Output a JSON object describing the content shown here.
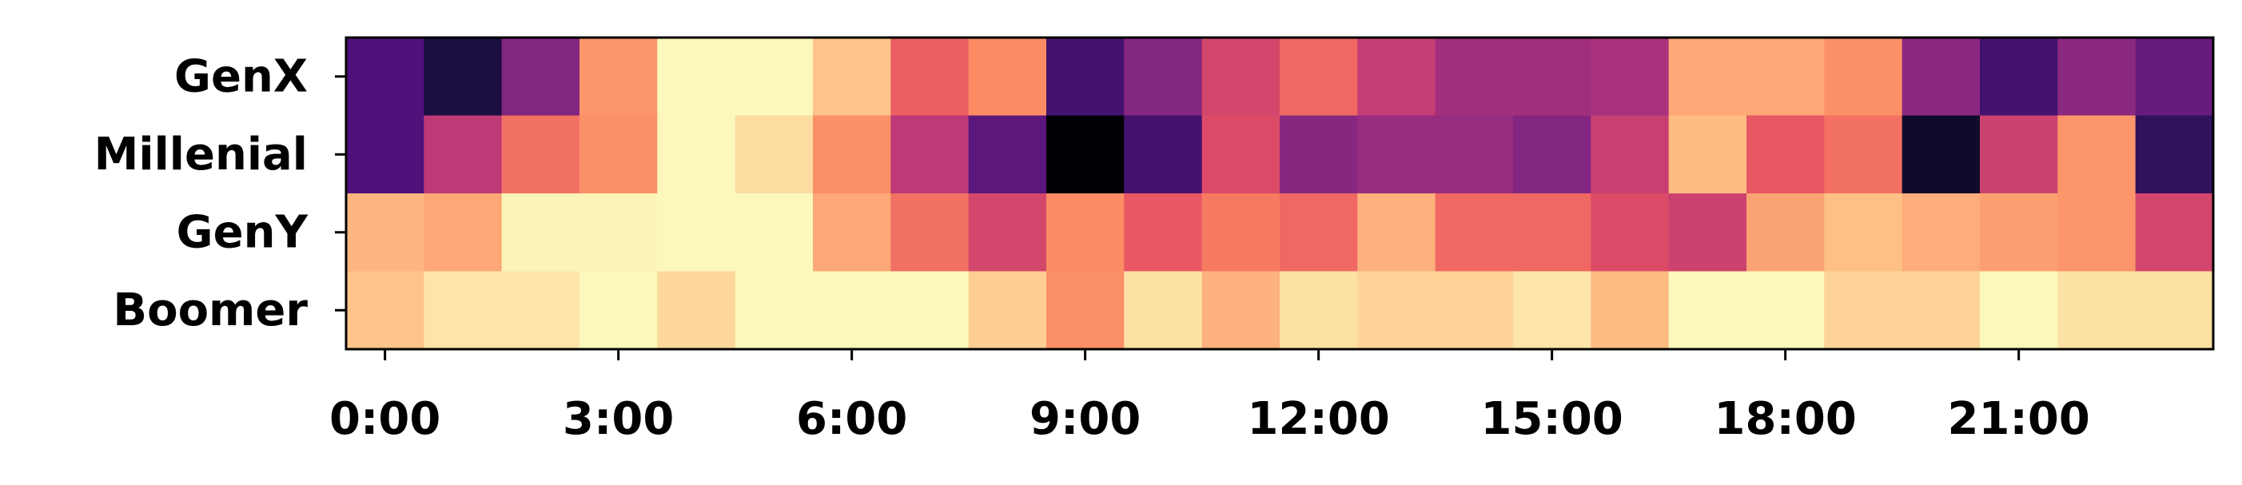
{
  "chart_data": {
    "type": "heatmap",
    "title": "",
    "xlabel": "",
    "ylabel": "",
    "colormap": "magma",
    "rows": [
      "GenX",
      "Millenial",
      "GenY",
      "Boomer"
    ],
    "columns": [
      "0:00",
      "1:00",
      "2:00",
      "3:00",
      "4:00",
      "5:00",
      "6:00",
      "7:00",
      "8:00",
      "9:00",
      "10:00",
      "11:00",
      "12:00",
      "13:00",
      "14:00",
      "15:00",
      "16:00",
      "17:00",
      "18:00",
      "19:00",
      "20:00",
      "21:00",
      "22:00",
      "23:00"
    ],
    "x_tick_labels": [
      "0:00",
      "3:00",
      "6:00",
      "9:00",
      "12:00",
      "15:00",
      "18:00",
      "21:00"
    ],
    "x_tick_hours": [
      0,
      3,
      6,
      9,
      12,
      15,
      18,
      21
    ],
    "values": [
      [
        0.25,
        0.12,
        0.38,
        0.78,
        0.99,
        0.99,
        0.88,
        0.66,
        0.76,
        0.22,
        0.38,
        0.58,
        0.68,
        0.54,
        0.45,
        0.45,
        0.47,
        0.82,
        0.82,
        0.77,
        0.4,
        0.22,
        0.4,
        0.31
      ],
      [
        0.25,
        0.52,
        0.7,
        0.77,
        0.99,
        0.93,
        0.77,
        0.52,
        0.28,
        0.0,
        0.22,
        0.6,
        0.39,
        0.43,
        0.43,
        0.38,
        0.55,
        0.86,
        0.64,
        0.7,
        0.08,
        0.56,
        0.78,
        0.18
      ],
      [
        0.85,
        0.82,
        0.98,
        0.98,
        0.99,
        0.99,
        0.82,
        0.7,
        0.58,
        0.76,
        0.64,
        0.72,
        0.68,
        0.84,
        0.68,
        0.68,
        0.6,
        0.56,
        0.81,
        0.87,
        0.83,
        0.8,
        0.78,
        0.58
      ],
      [
        0.88,
        0.95,
        0.95,
        0.99,
        0.92,
        0.99,
        0.99,
        0.99,
        0.9,
        0.77,
        0.94,
        0.84,
        0.94,
        0.91,
        0.91,
        0.95,
        0.86,
        0.99,
        0.99,
        0.91,
        0.91,
        0.99,
        0.94,
        0.94
      ]
    ],
    "vmin": 0,
    "vmax": 1,
    "legend": "none",
    "grid": false
  }
}
